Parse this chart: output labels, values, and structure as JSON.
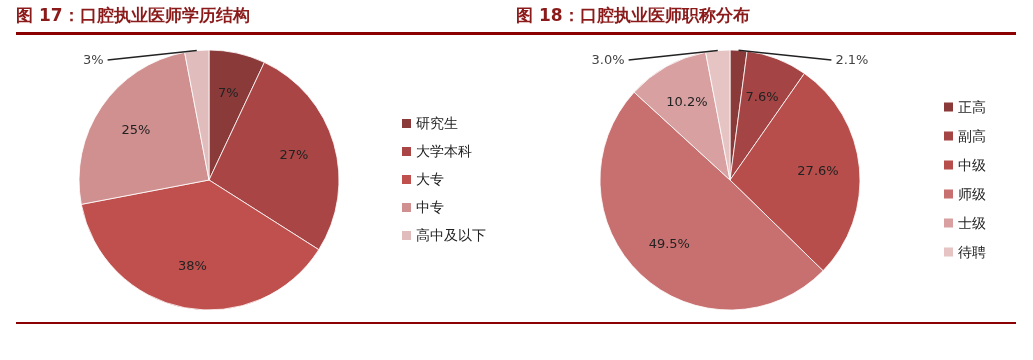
{
  "chart_data": [
    {
      "type": "pie",
      "title": "图 17：口腔执业医师学历结构",
      "categories": [
        "研究生",
        "大学本科",
        "大专",
        "中专",
        "高中及以下"
      ],
      "values": [
        7,
        27,
        38,
        25,
        3
      ],
      "value_labels": [
        "7%",
        "27%",
        "38%",
        "25%",
        "3%"
      ],
      "colors": [
        "#8b3a3a",
        "#a94545",
        "#c0504d",
        "#d19090",
        "#e0bcbc"
      ],
      "legend": "right"
    },
    {
      "type": "pie",
      "title": "图 18：口腔执业医师职称分布",
      "categories": [
        "正高",
        "副高",
        "中级",
        "师级",
        "士级",
        "待聘"
      ],
      "values": [
        2.1,
        7.6,
        27.6,
        49.5,
        10.2,
        3.0
      ],
      "value_labels": [
        "2.1%",
        "7.6%",
        "27.6%",
        "49.5%",
        "10.2%",
        "3.0%"
      ],
      "colors": [
        "#8b3a3a",
        "#a44444",
        "#b84e4b",
        "#c87070",
        "#d8a0a0",
        "#e6c4c4"
      ],
      "legend": "right"
    }
  ]
}
